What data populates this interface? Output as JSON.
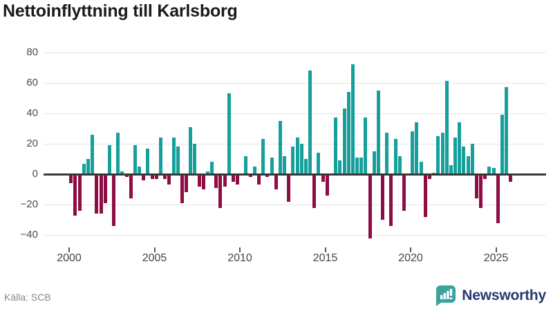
{
  "title": "Nettoinflyttning till Karlsborg",
  "source": "Källa: SCB",
  "branding": {
    "name": "Newsworthy",
    "icon": "bar-chart-speech-bubble",
    "icon_color": "#3ba39d",
    "text_color": "#233a6d"
  },
  "chart_data": {
    "type": "bar",
    "title": "Nettoinflyttning till Karlsborg",
    "xlabel": "",
    "ylabel": "",
    "start_year": 2000,
    "frequency": "quarterly",
    "x_tick_labels": [
      "2000",
      "2005",
      "2010",
      "2015",
      "2020",
      "2025"
    ],
    "y_ticks": [
      80,
      60,
      40,
      20,
      0,
      -20,
      -40
    ],
    "y_tick_labels": [
      "80",
      "60",
      "40",
      "20",
      "0",
      "−20",
      "−40"
    ],
    "ylim": [
      -50,
      86
    ],
    "grid": "horizontal",
    "legend": "none",
    "colors": {
      "positive": "#17a09b",
      "negative": "#8e0e44"
    },
    "series": [
      {
        "name": "Nettoinflyttning per kvartal",
        "values": [
          -6,
          -27,
          -24,
          7,
          10,
          26,
          -26,
          -26,
          -19,
          19,
          -34,
          27,
          2,
          -2,
          -16,
          19,
          5,
          -4,
          17,
          -3,
          -3,
          24,
          -3,
          -7,
          24,
          18,
          -19,
          -12,
          31,
          20,
          -8,
          -10,
          2,
          8,
          -9,
          -22,
          -8,
          53,
          -5,
          -7,
          0,
          12,
          -2,
          5,
          -7,
          23,
          -2,
          11,
          -10,
          35,
          12,
          -18,
          18,
          24,
          20,
          10,
          68,
          -22,
          14,
          -5,
          -14,
          0,
          37,
          9,
          43,
          54,
          72,
          11,
          11,
          37,
          -42,
          15,
          55,
          -30,
          27,
          -34,
          23,
          12,
          -24,
          0,
          28,
          34,
          8,
          -28,
          -3,
          1,
          25,
          27,
          61,
          6,
          24,
          34,
          18,
          12,
          20,
          -16,
          -22,
          -3,
          5,
          4,
          -32,
          39,
          57,
          -5
        ]
      }
    ]
  }
}
